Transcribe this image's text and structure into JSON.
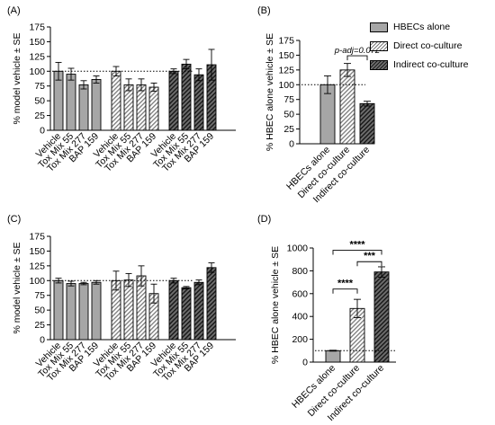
{
  "panels": [
    {
      "label": "(A)"
    },
    {
      "label": "(B)"
    },
    {
      "label": "(C)"
    },
    {
      "label": "(D)"
    }
  ],
  "legend": [
    {
      "label": "HBECs alone",
      "pattern": "plain"
    },
    {
      "label": "Direct co-culture",
      "pattern": "light"
    },
    {
      "label": "Indirect co-culture",
      "pattern": "dark"
    }
  ],
  "colors": {
    "bar_gray": "#a6a6a6",
    "hatch_dark": "#1a1a1a",
    "axis": "#000000"
  },
  "chart_data": [
    {
      "type": "bar",
      "panel": "(A)",
      "ylabel": "% model vehicle ± SE",
      "ylim": [
        0,
        175
      ],
      "yticks": [
        0,
        25,
        50,
        75,
        100,
        125,
        150,
        175
      ],
      "reference_line": 100,
      "groups": [
        {
          "pattern": "plain",
          "categories": [
            "Vehicle",
            "Tox Mix 55",
            "Tox Mix 277",
            "BAP 159"
          ],
          "values": [
            100,
            95,
            77,
            86
          ],
          "errors": [
            15,
            10,
            7,
            6
          ]
        },
        {
          "pattern": "light",
          "categories": [
            "Vehicle",
            "Tox Mix 55",
            "Tox Mix 277",
            "BAP 159"
          ],
          "values": [
            100,
            77,
            77,
            73
          ],
          "errors": [
            8,
            10,
            10,
            7
          ]
        },
        {
          "pattern": "dark",
          "categories": [
            "Vehicle",
            "Tox Mix 55",
            "Tox Mix 277",
            "BAP 159"
          ],
          "values": [
            100,
            112,
            94,
            111
          ],
          "errors": [
            4,
            8,
            10,
            26
          ]
        }
      ]
    },
    {
      "type": "bar",
      "panel": "(B)",
      "ylabel": "% HBEC alone vehicle ± SE",
      "ylim": [
        0,
        175
      ],
      "yticks": [
        0,
        25,
        50,
        75,
        100,
        125,
        150,
        175
      ],
      "reference_line": 100,
      "categories": [
        "HBECs alone",
        "Direct co-culture",
        "Indirect co-culture"
      ],
      "patterns": [
        "plain",
        "light",
        "dark"
      ],
      "values": [
        100,
        125,
        68
      ],
      "errors": [
        15,
        11,
        4
      ],
      "annotations": [
        {
          "from": 1,
          "to": 2,
          "text": "p-adj=0.072",
          "y": 149
        }
      ]
    },
    {
      "type": "bar",
      "panel": "(C)",
      "ylabel": "% model vehicle ± SE",
      "ylim": [
        0,
        175
      ],
      "yticks": [
        0,
        25,
        50,
        75,
        100,
        125,
        150,
        175
      ],
      "reference_line": 100,
      "groups": [
        {
          "pattern": "plain",
          "categories": [
            "Vehicle",
            "Tox Mix 55",
            "Tox Mix 277",
            "BAP 159"
          ],
          "values": [
            100,
            95,
            95,
            97
          ],
          "errors": [
            4,
            4,
            2,
            3
          ]
        },
        {
          "pattern": "light",
          "categories": [
            "Vehicle",
            "Tox Mix 55",
            "Tox Mix 277",
            "BAP 159"
          ],
          "values": [
            100,
            101,
            108,
            78
          ],
          "errors": [
            16,
            11,
            17,
            16
          ]
        },
        {
          "pattern": "dark",
          "categories": [
            "Vehicle",
            "Tox Mix 55",
            "Tox Mix 277",
            "BAP 159"
          ],
          "values": [
            100,
            88,
            97,
            122
          ],
          "errors": [
            4,
            2,
            4,
            8
          ]
        }
      ]
    },
    {
      "type": "bar",
      "panel": "(D)",
      "ylabel": "% HBEC alone vehicle ± SE",
      "ylim": [
        0,
        1000
      ],
      "yticks": [
        0,
        200,
        400,
        600,
        800,
        1000
      ],
      "reference_line": 100,
      "categories": [
        "HBECs alone",
        "Direct co-culture",
        "Indirect co-culture"
      ],
      "patterns": [
        "plain",
        "light",
        "dark"
      ],
      "values": [
        100,
        470,
        790
      ],
      "errors": [
        4,
        80,
        45
      ],
      "annotations": [
        {
          "from": 0,
          "to": 1,
          "text": "****",
          "y": 640
        },
        {
          "from": 1,
          "to": 2,
          "text": "***",
          "y": 880
        },
        {
          "from": 0,
          "to": 2,
          "text": "****",
          "y": 980
        }
      ]
    }
  ]
}
